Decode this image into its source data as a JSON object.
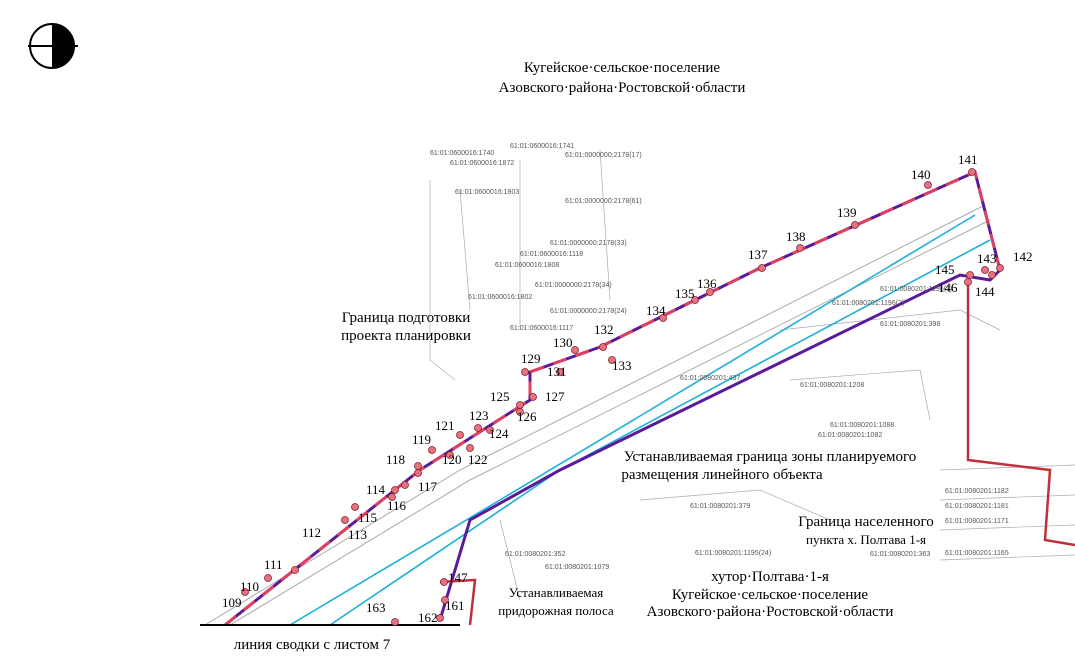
{
  "header": {
    "lines": [
      "Кугейское·сельское·поселение",
      "Азовского·района·Ростовской·области"
    ]
  },
  "annotations": [
    {
      "lines": [
        "Граница  подготовки",
        "проекта планировки"
      ]
    },
    {
      "lines": [
        "Устанавливаемая граница зоны планируемого",
        "размещения линейного объекта"
      ]
    },
    {
      "lines": [
        "Граница населенного",
        "пункта х. Полтава 1-я"
      ]
    },
    {
      "lines": [
        "хутор·Полтава·1-я",
        "Кугейское·сельское·поселение",
        "Азовского·района·Ростовской·области"
      ]
    },
    {
      "lines": [
        "Устанавливаемая",
        "придорожная полоса"
      ]
    }
  ],
  "sheet_link": "линия сводки с листом 7",
  "points": [
    "109",
    "110",
    "111",
    "112",
    "113",
    "114",
    "115",
    "116",
    "117",
    "118",
    "119",
    "120",
    "121",
    "122",
    "123",
    "124",
    "125",
    "126",
    "127",
    "129",
    "130",
    "131",
    "132",
    "133",
    "134",
    "135",
    "136",
    "137",
    "138",
    "139",
    "140",
    "141",
    "142",
    "143",
    "144",
    "145",
    "146",
    "147",
    "161",
    "162",
    "163"
  ],
  "parcels": [
    "61:01:0600016:1741",
    "61:01:0600016:1740",
    "61:01:0600016:1872",
    "61:01:0000000:2178(17)",
    "61:01:0600016:1803",
    "61:01:0000000:2178(61)",
    "61:01:0000000:2178(33)",
    "61:01:0600016:1118",
    "61:01:0600016:1808",
    "61:01:0000000:2178(34)",
    "61:01:0600016:1802",
    "61:01:0000000:2178(24)",
    "61:01:0600016:1117",
    "61:01:0080201:1196(1)",
    "61:01:0080201:1196(2)",
    "61:01:0080201:398",
    "61:01:0080201:437",
    "61:01:0080201:1208",
    "61:01:0080201:1082",
    "61:01:0080201:1088",
    "61:01:0080201:379",
    "61:01:0080201:352",
    "61:01:0080201:363",
    "61:01:0080201:1079",
    "61:01:0080201:1195(24)",
    "61:01:0080201:1182",
    "61:01:0080201:1181",
    "61:01:0080201:1171",
    "61:01:0080201:1165"
  ]
}
